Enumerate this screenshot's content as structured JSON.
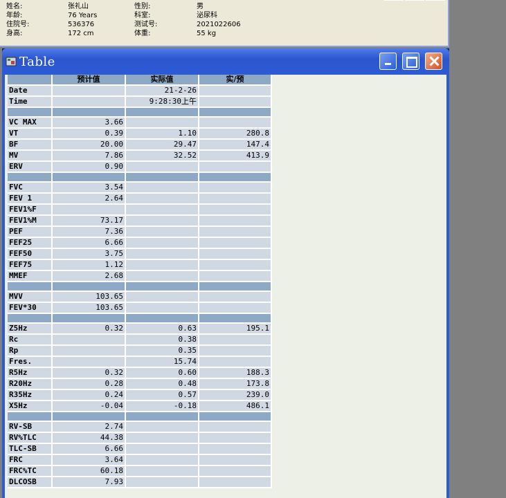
{
  "patient": {
    "rows": [
      {
        "l1": "姓名:",
        "v1": "张礼山",
        "l2": "性别:",
        "v2": "男"
      },
      {
        "l1": "年龄:",
        "v1": "76 Years",
        "l2": "科室:",
        "v2": "泌尿科"
      },
      {
        "l1": "住院号:",
        "v1": "536376",
        "l2": "测试号:",
        "v2": "2021022606"
      },
      {
        "l1": "身高:",
        "v1": "172 cm",
        "l2": "体重:",
        "v2": "55 kg"
      }
    ]
  },
  "window": {
    "title": "Table"
  },
  "table": {
    "headers": [
      "",
      "预计值",
      "实际值",
      "实/预"
    ],
    "rows": [
      [
        "Date",
        "",
        "21-2-26",
        ""
      ],
      [
        "Time",
        "",
        "9:28:30上午",
        ""
      ],
      [
        "",
        "",
        "",
        ""
      ],
      [
        "VC MAX",
        "3.66",
        "",
        ""
      ],
      [
        "VT",
        "0.39",
        "1.10",
        "280.8"
      ],
      [
        "BF",
        "20.00",
        "29.47",
        "147.4"
      ],
      [
        "MV",
        "7.86",
        "32.52",
        "413.9"
      ],
      [
        "ERV",
        "0.90",
        "",
        ""
      ],
      [
        "",
        "",
        "",
        ""
      ],
      [
        "FVC",
        "3.54",
        "",
        ""
      ],
      [
        "FEV 1",
        "2.64",
        "",
        ""
      ],
      [
        "FEV1%F",
        "",
        "",
        ""
      ],
      [
        "FEV1%M",
        "73.17",
        "",
        ""
      ],
      [
        "PEF",
        "7.36",
        "",
        ""
      ],
      [
        "FEF25",
        "6.66",
        "",
        ""
      ],
      [
        "FEF50",
        "3.75",
        "",
        ""
      ],
      [
        "FEF75",
        "1.12",
        "",
        ""
      ],
      [
        "MMEF",
        "2.68",
        "",
        ""
      ],
      [
        "",
        "",
        "",
        ""
      ],
      [
        "MVV",
        "103.65",
        "",
        ""
      ],
      [
        "FEV*30",
        "103.65",
        "",
        ""
      ],
      [
        "",
        "",
        "",
        ""
      ],
      [
        "Z5Hz",
        "0.32",
        "0.63",
        "195.1"
      ],
      [
        "Rc",
        "",
        "0.38",
        ""
      ],
      [
        "Rp",
        "",
        "0.35",
        ""
      ],
      [
        "Fres.",
        "",
        "15.74",
        ""
      ],
      [
        "R5Hz",
        "0.32",
        "0.60",
        "188.3"
      ],
      [
        "R20Hz",
        "0.28",
        "0.48",
        "173.8"
      ],
      [
        "R35Hz",
        "0.24",
        "0.57",
        "239.0"
      ],
      [
        "X5Hz",
        "-0.04",
        "-0.18",
        "486.1"
      ],
      [
        "",
        "",
        "",
        ""
      ],
      [
        "RV-SB",
        "2.74",
        "",
        ""
      ],
      [
        "RV%TLC",
        "44.38",
        "",
        ""
      ],
      [
        "TLC-SB",
        "6.66",
        "",
        ""
      ],
      [
        "FRC",
        "3.64",
        "",
        ""
      ],
      [
        "FRC%TC",
        "60.18",
        "",
        ""
      ],
      [
        "DLCOSB",
        "7.93",
        "",
        ""
      ]
    ]
  }
}
